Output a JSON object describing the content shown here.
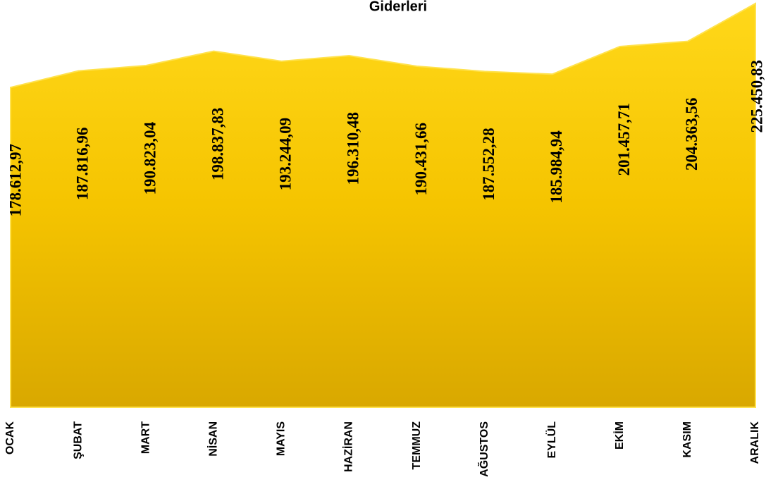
{
  "chart_data": {
    "type": "area",
    "title": "Giderleri",
    "categories": [
      "OCAK",
      "ŞUBAT",
      "MART",
      "NİSAN",
      "MAYIS",
      "HAZİRAN",
      "TEMMUZ",
      "AĞUSTOS",
      "EYLÜL",
      "EKİM",
      "KASIM",
      "ARALIK"
    ],
    "values": [
      178612.97,
      187816.96,
      190823.04,
      198837.83,
      193244.09,
      196310.48,
      190431.66,
      187552.28,
      185984.94,
      201457.71,
      204363.56,
      225450.83
    ],
    "value_labels": [
      "178.612,97",
      "187.816,96",
      "190.823,04",
      "198.837,83",
      "193.244,09",
      "196.310,48",
      "190.431,66",
      "187.552,28",
      "185.984,94",
      "201.457,71",
      "204.363,56",
      "225.450,83"
    ],
    "color": "#ffd000",
    "ylim": [
      0,
      225450.83
    ]
  }
}
